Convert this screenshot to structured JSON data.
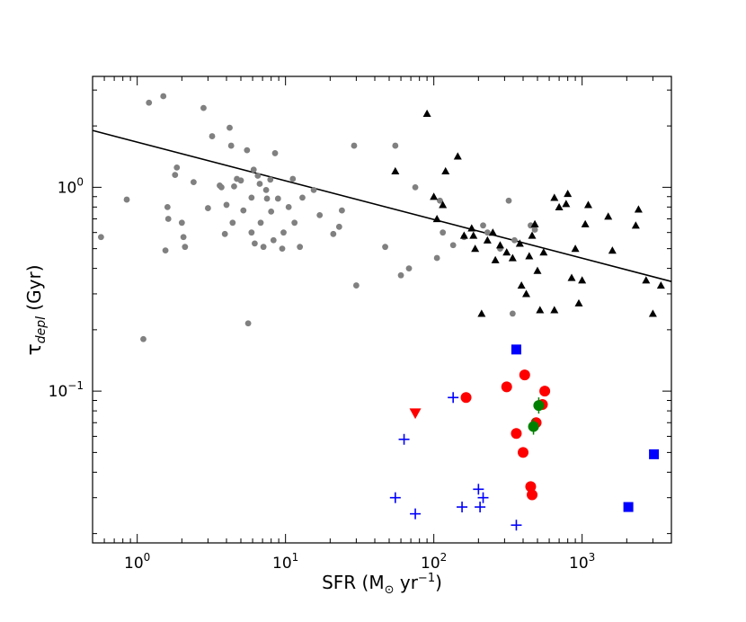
{
  "chart_data": {
    "type": "scatter",
    "x_scale": "log",
    "y_scale": "log",
    "xlim": [
      0.5,
      4000
    ],
    "ylim": [
      0.018,
      3.5
    ],
    "grid": false,
    "xlabel": {
      "base": "SFR (M",
      "sub": "⊙",
      "mid": " yr",
      "sup": "−1",
      "end": ")"
    },
    "ylabel": {
      "base": "τ",
      "sub": "depl",
      "end": " (Gyr)"
    },
    "x_ticks": [
      {
        "value": 1,
        "base": "10",
        "exp": "0"
      },
      {
        "value": 10,
        "base": "10",
        "exp": "1"
      },
      {
        "value": 100,
        "base": "10",
        "exp": "2"
      },
      {
        "value": 1000,
        "base": "10",
        "exp": "3"
      }
    ],
    "y_ticks": [
      {
        "value": 1,
        "label": "10",
        "exp": "0"
      },
      {
        "value": 0.1,
        "label": "10",
        "exp": "−1"
      }
    ],
    "fit_line": {
      "x": [
        0.5,
        4000
      ],
      "y": [
        1.9,
        0.345
      ],
      "color": "#000000"
    },
    "series": [
      {
        "marker": "circle",
        "color": "#808080",
        "points": [
          [
            0.57,
            0.57
          ],
          [
            0.85,
            0.87
          ],
          [
            1.1,
            0.18
          ],
          [
            1.2,
            2.6
          ],
          [
            1.5,
            2.8
          ],
          [
            1.55,
            0.49
          ],
          [
            1.6,
            0.8
          ],
          [
            1.62,
            0.7
          ],
          [
            1.8,
            1.15
          ],
          [
            1.85,
            1.25
          ],
          [
            2.0,
            0.67
          ],
          [
            2.05,
            0.57
          ],
          [
            2.1,
            0.51
          ],
          [
            2.4,
            1.06
          ],
          [
            2.8,
            2.45
          ],
          [
            3.0,
            0.79
          ],
          [
            3.2,
            1.78
          ],
          [
            3.6,
            1.02
          ],
          [
            3.7,
            1.0
          ],
          [
            3.9,
            0.59
          ],
          [
            4.0,
            0.82
          ],
          [
            4.2,
            1.96
          ],
          [
            4.3,
            1.6
          ],
          [
            4.4,
            0.67
          ],
          [
            4.5,
            1.01
          ],
          [
            4.7,
            1.1
          ],
          [
            5.0,
            1.08
          ],
          [
            5.2,
            0.77
          ],
          [
            5.5,
            1.52
          ],
          [
            5.6,
            0.215
          ],
          [
            5.9,
            0.6
          ],
          [
            5.9,
            0.89
          ],
          [
            6.1,
            1.22
          ],
          [
            6.2,
            0.53
          ],
          [
            6.5,
            1.14
          ],
          [
            6.7,
            1.04
          ],
          [
            6.8,
            0.67
          ],
          [
            7.1,
            0.51
          ],
          [
            7.4,
            0.97
          ],
          [
            7.5,
            0.88
          ],
          [
            7.9,
            1.09
          ],
          [
            8.0,
            0.76
          ],
          [
            8.3,
            0.55
          ],
          [
            8.5,
            1.47
          ],
          [
            8.9,
            0.88
          ],
          [
            9.5,
            0.5
          ],
          [
            9.7,
            0.6
          ],
          [
            10.5,
            0.8
          ],
          [
            11.2,
            1.1
          ],
          [
            11.5,
            0.67
          ],
          [
            12.5,
            0.51
          ],
          [
            13,
            0.89
          ],
          [
            15.5,
            0.97
          ],
          [
            17,
            0.73
          ],
          [
            21,
            0.59
          ],
          [
            23,
            0.64
          ],
          [
            24,
            0.77
          ],
          [
            29,
            1.6
          ],
          [
            30,
            0.33
          ],
          [
            47,
            0.51
          ],
          [
            55,
            1.6
          ],
          [
            60,
            0.37
          ],
          [
            68,
            0.4
          ],
          [
            75,
            1.0
          ],
          [
            105,
            0.45
          ],
          [
            110,
            0.86
          ],
          [
            115,
            0.6
          ],
          [
            135,
            0.52
          ],
          [
            160,
            0.57
          ],
          [
            215,
            0.65
          ],
          [
            230,
            0.6
          ],
          [
            280,
            0.5
          ],
          [
            320,
            0.86
          ],
          [
            340,
            0.24
          ],
          [
            350,
            0.55
          ],
          [
            450,
            0.65
          ],
          [
            480,
            0.62
          ]
        ]
      },
      {
        "marker": "triangle",
        "color": "#000000",
        "points": [
          [
            55,
            1.2
          ],
          [
            90,
            2.3
          ],
          [
            100,
            0.9
          ],
          [
            105,
            0.7
          ],
          [
            115,
            0.82
          ],
          [
            120,
            1.2
          ],
          [
            145,
            1.42
          ],
          [
            160,
            0.58
          ],
          [
            180,
            0.63
          ],
          [
            185,
            0.58
          ],
          [
            190,
            0.5
          ],
          [
            210,
            0.24
          ],
          [
            230,
            0.55
          ],
          [
            250,
            0.6
          ],
          [
            260,
            0.44
          ],
          [
            280,
            0.52
          ],
          [
            310,
            0.48
          ],
          [
            340,
            0.45
          ],
          [
            380,
            0.53
          ],
          [
            390,
            0.33
          ],
          [
            420,
            0.3
          ],
          [
            440,
            0.46
          ],
          [
            460,
            0.58
          ],
          [
            480,
            0.66
          ],
          [
            500,
            0.39
          ],
          [
            520,
            0.25
          ],
          [
            550,
            0.48
          ],
          [
            650,
            0.25
          ],
          [
            650,
            0.89
          ],
          [
            700,
            0.8
          ],
          [
            780,
            0.83
          ],
          [
            800,
            0.93
          ],
          [
            850,
            0.36
          ],
          [
            900,
            0.5
          ],
          [
            950,
            0.27
          ],
          [
            1000,
            0.35
          ],
          [
            1050,
            0.66
          ],
          [
            1100,
            0.82
          ],
          [
            1500,
            0.72
          ],
          [
            1600,
            0.49
          ],
          [
            2300,
            0.65
          ],
          [
            2400,
            0.78
          ],
          [
            2700,
            0.35
          ],
          [
            3000,
            0.24
          ],
          [
            3400,
            0.33
          ]
        ]
      },
      {
        "marker": "circle",
        "color": "#ff0000",
        "points": [
          [
            165,
            0.093
          ],
          [
            310,
            0.105
          ],
          [
            360,
            0.062
          ],
          [
            400,
            0.05
          ],
          [
            410,
            0.12
          ],
          [
            450,
            0.034
          ],
          [
            460,
            0.031
          ],
          [
            490,
            0.07
          ],
          [
            540,
            0.086
          ],
          [
            560,
            0.1
          ]
        ]
      },
      {
        "marker": "circle",
        "color": "#008000",
        "error_bars": true,
        "points": [
          [
            470,
            0.067
          ],
          [
            510,
            0.085
          ]
        ]
      },
      {
        "marker": "triangle-down",
        "color": "#ff0000",
        "points": [
          [
            75,
            0.078
          ]
        ]
      },
      {
        "marker": "square",
        "color": "#0000ff",
        "points": [
          [
            360,
            0.16
          ],
          [
            2050,
            0.027
          ],
          [
            3050,
            0.049
          ]
        ]
      },
      {
        "marker": "plus",
        "color": "#0000ff",
        "points": [
          [
            55,
            0.03
          ],
          [
            63,
            0.058
          ],
          [
            75,
            0.025
          ],
          [
            135,
            0.093
          ],
          [
            155,
            0.027
          ],
          [
            200,
            0.033
          ],
          [
            205,
            0.027
          ],
          [
            215,
            0.03
          ],
          [
            360,
            0.022
          ]
        ]
      }
    ]
  }
}
